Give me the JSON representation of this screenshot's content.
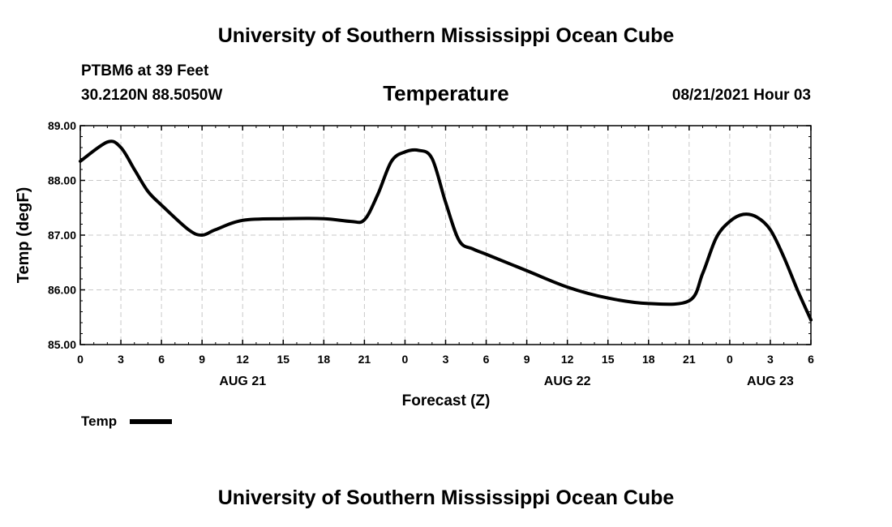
{
  "header": {
    "banner_top": "University of Southern Mississippi Ocean Cube",
    "station": "PTBM6 at 39 Feet",
    "coords": "30.2120N  88.5050W",
    "variable": "Temperature",
    "datetime": "08/21/2021 Hour 03"
  },
  "footer": {
    "banner_bottom": "University of Southern Mississippi Ocean Cube"
  },
  "legend": {
    "label": "Temp"
  },
  "chart_data": {
    "type": "line",
    "title": "Temperature",
    "xlabel": "Forecast (Z)",
    "ylabel": "Temp (degF)",
    "ylim": [
      85.0,
      89.0
    ],
    "xlim": [
      0,
      54
    ],
    "grid": true,
    "legend_position": "bottom-left",
    "y_ticks": [
      "85.00",
      "86.00",
      "87.00",
      "88.00",
      "89.00"
    ],
    "y_tick_values": [
      85,
      86,
      87,
      88,
      89
    ],
    "x_tick_labels": [
      "0",
      "3",
      "6",
      "9",
      "12",
      "15",
      "18",
      "21",
      "0",
      "3",
      "6",
      "9",
      "12",
      "15",
      "18",
      "21",
      "0",
      "3",
      "6"
    ],
    "date_labels": [
      {
        "label": "AUG 21",
        "hour": 12
      },
      {
        "label": "AUG 22",
        "hour": 36
      },
      {
        "label": "AUG 23",
        "hour": 51
      }
    ],
    "series": [
      {
        "name": "Temp",
        "color": "#000000",
        "x": [
          0,
          2,
          3,
          4,
          5,
          6,
          8,
          9,
          10,
          12,
          15,
          18,
          20,
          21,
          22,
          23,
          24,
          25,
          26,
          27,
          28,
          29,
          30,
          33,
          36,
          39,
          42,
          45,
          46,
          47,
          48,
          49,
          50,
          51,
          52,
          53,
          54
        ],
        "y": [
          88.35,
          88.7,
          88.6,
          88.2,
          87.8,
          87.55,
          87.1,
          87.0,
          87.1,
          87.27,
          87.3,
          87.3,
          87.25,
          87.28,
          87.75,
          88.35,
          88.52,
          88.55,
          88.4,
          87.6,
          86.9,
          86.75,
          86.65,
          86.35,
          86.05,
          85.85,
          85.75,
          85.8,
          86.3,
          86.95,
          87.25,
          87.38,
          87.33,
          87.1,
          86.6,
          86.0,
          85.45
        ]
      }
    ]
  }
}
